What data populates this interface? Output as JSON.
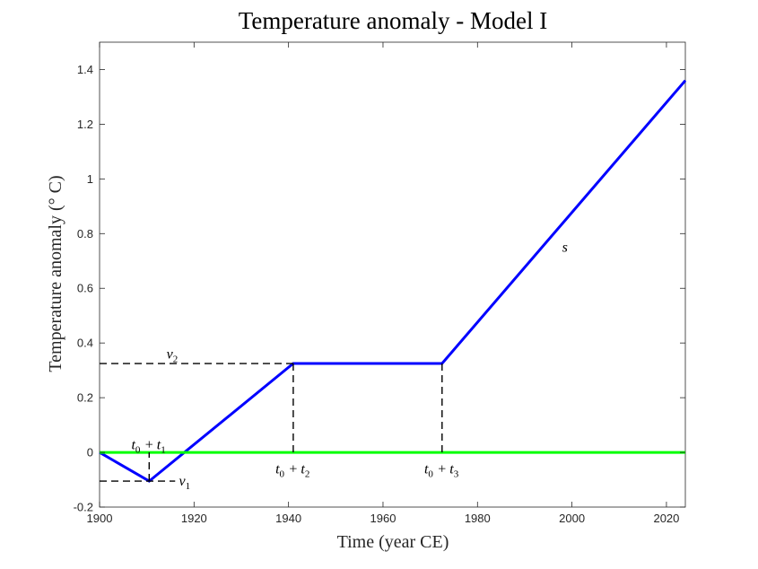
{
  "chart_data": {
    "type": "line",
    "title": "Temperature anomaly - Model I",
    "xlabel": "Time (year CE)",
    "ylabel": "Temperature anomaly (° C)",
    "xlim": [
      1900,
      2024
    ],
    "ylim": [
      -0.2,
      1.5
    ],
    "xticks": [
      1900,
      1920,
      1940,
      1960,
      1980,
      2000,
      2020
    ],
    "xtick_labels": [
      "1900",
      "1920",
      "1940",
      "1960",
      "1980",
      "2000",
      "2020"
    ],
    "yticks": [
      -0.2,
      0,
      0.2,
      0.4,
      0.6,
      0.8,
      1,
      1.2,
      1.4
    ],
    "ytick_labels": [
      "-0.2",
      "0",
      "0.2",
      "0.4",
      "0.6",
      "0.8",
      "1",
      "1.2",
      "1.4"
    ],
    "grid": false,
    "series": [
      {
        "color": "#0000ff",
        "x": [
          1900,
          1910.5,
          1941,
          1972.5,
          2024
        ],
        "y": [
          0,
          -0.105,
          0.325,
          0.325,
          1.36
        ]
      },
      {
        "color": "#00ff00",
        "x": [
          1900,
          2024
        ],
        "y": [
          0,
          0
        ]
      }
    ],
    "guide_lines": [
      {
        "x": [
          1900,
          1941
        ],
        "y": [
          0.325,
          0.325
        ]
      },
      {
        "x": [
          1941,
          1941
        ],
        "y": [
          0,
          0.325
        ]
      },
      {
        "x": [
          1972.5,
          1972.5
        ],
        "y": [
          0,
          0.325
        ]
      },
      {
        "x": [
          1910.5,
          1910.5
        ],
        "y": [
          -0.105,
          0
        ]
      },
      {
        "x": [
          1900,
          1916
        ],
        "y": [
          -0.105,
          -0.105
        ]
      }
    ],
    "annotations": [
      {
        "id": "v2",
        "var": "v",
        "sub": "2",
        "x": 1915.5,
        "y": 0.36,
        "anchor": "middle"
      },
      {
        "id": "v1",
        "var": "v",
        "sub": "1",
        "x": 1916.8,
        "y": -0.105,
        "anchor": "start"
      },
      {
        "id": "t0t1",
        "x": 1910.5,
        "y": 0.028,
        "anchor": "middle",
        "parts": [
          [
            "t",
            "0"
          ],
          [
            "t",
            "1"
          ]
        ]
      },
      {
        "id": "t0t2",
        "x": 1941,
        "y": -0.06,
        "anchor": "middle",
        "parts": [
          [
            "t",
            "0"
          ],
          [
            "t",
            "2"
          ]
        ]
      },
      {
        "id": "t0t3",
        "x": 1972.5,
        "y": -0.06,
        "anchor": "middle",
        "parts": [
          [
            "t",
            "0"
          ],
          [
            "t",
            "3"
          ]
        ]
      },
      {
        "id": "s",
        "var": "s",
        "x": 1998.5,
        "y": 0.75,
        "anchor": "middle"
      }
    ]
  }
}
